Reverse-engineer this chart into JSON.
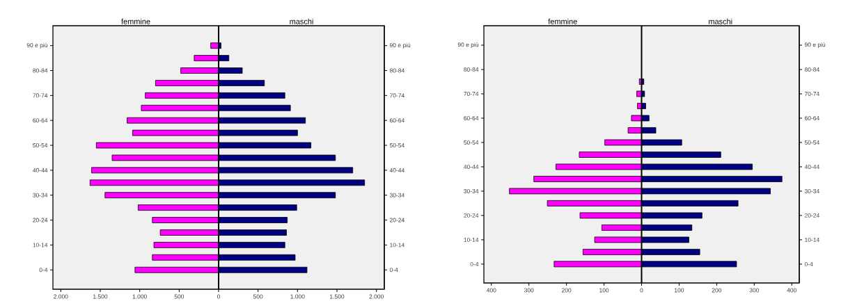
{
  "chart_data": [
    {
      "type": "bar",
      "orientation": "horizontal",
      "stacked": true,
      "categories": [
        "90 e più",
        null,
        "80-84",
        null,
        "70-74",
        null,
        "60-64",
        null,
        "50-54",
        null,
        "40-44",
        null,
        "30-34",
        null,
        "20-24",
        null,
        "10-14",
        null,
        "0-4"
      ],
      "series": [
        {
          "color": "#ff00ff",
          "values": [
            -100,
            -310,
            -480,
            -800,
            -930,
            -980,
            -1160,
            -1090,
            -1550,
            -1350,
            -1610,
            -1630,
            -1440,
            -1020,
            -840,
            -740,
            -820,
            -840,
            -1060
          ]
        },
        {
          "color": "#000080",
          "values": [
            30,
            130,
            300,
            580,
            840,
            910,
            1100,
            1000,
            1170,
            1480,
            1700,
            1850,
            1480,
            990,
            870,
            860,
            840,
            970,
            1120
          ]
        }
      ],
      "xlim": [
        -2100,
        2100
      ],
      "xticks": [
        {
          "value": -2000,
          "label": "2.000"
        },
        {
          "value": -1500,
          "label": "1.500"
        },
        {
          "value": -1000,
          "label": "1.000"
        },
        {
          "value": -500,
          "label": "500"
        },
        0,
        500,
        {
          "value": 1000,
          "label": "1.000"
        },
        {
          "value": 1500,
          "label": "1.500"
        },
        {
          "value": 2000,
          "label": "2.000"
        }
      ],
      "ref_lines": [
        {
          "axis": "x",
          "value": 0,
          "color": "#000000"
        }
      ],
      "annotations": [
        "femmine",
        "maschi"
      ],
      "legend": false
    },
    {
      "type": "bar",
      "orientation": "horizontal",
      "stacked": true,
      "categories": [
        "90 e più",
        null,
        "80-84",
        null,
        "70-74",
        null,
        "60-64",
        null,
        "50-54",
        null,
        "40-44",
        null,
        "30-34",
        null,
        "20-24",
        null,
        "10-14",
        null,
        "0-4"
      ],
      "series": [
        {
          "color": "#ff00ff",
          "values": [
            null,
            null,
            null,
            -6,
            -13,
            -11,
            -27,
            -36,
            -98,
            -166,
            -228,
            -287,
            -352,
            -251,
            -164,
            -106,
            -125,
            -156,
            -233
          ]
        },
        {
          "color": "#000080",
          "values": [
            null,
            null,
            null,
            6,
            8,
            11,
            20,
            38,
            107,
            211,
            295,
            374,
            343,
            257,
            161,
            134,
            126,
            155,
            253
          ]
        }
      ],
      "xlim": [
        -420,
        420
      ],
      "xticks": [
        {
          "value": -400,
          "label": "400"
        },
        {
          "value": -300,
          "label": "300"
        },
        {
          "value": -200,
          "label": "200"
        },
        {
          "value": -100,
          "label": "100"
        },
        0,
        100,
        200,
        300,
        400
      ],
      "ref_lines": [
        {
          "axis": "x",
          "value": 0,
          "color": "#000000"
        }
      ],
      "annotations": [
        "femmine",
        "maschi"
      ],
      "legend": false
    }
  ]
}
